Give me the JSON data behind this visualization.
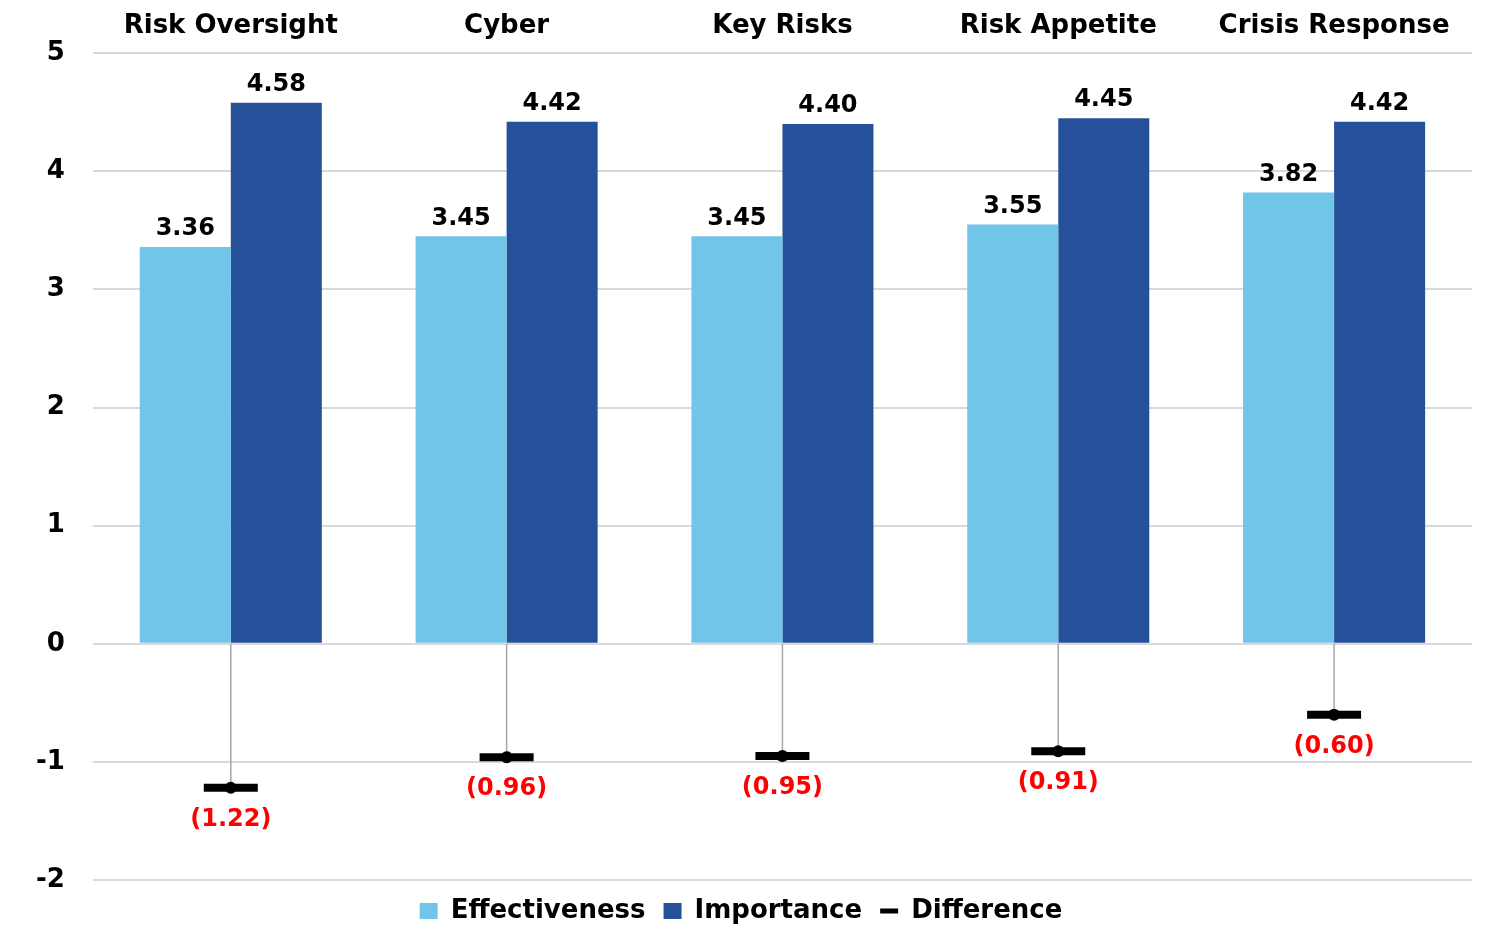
{
  "chart_data": {
    "type": "bar",
    "categories": [
      "Risk Oversight",
      "Cyber",
      "Key Risks",
      "Risk Appetite",
      "Crisis Response"
    ],
    "series": [
      {
        "name": "Effectiveness",
        "color": "#71c5e8",
        "values": [
          3.36,
          3.45,
          3.45,
          3.55,
          3.82
        ],
        "value_labels": [
          "3.36",
          "3.45",
          "3.45",
          "3.55",
          "3.82"
        ]
      },
      {
        "name": "Importance",
        "color": "#27509b",
        "values": [
          4.58,
          4.42,
          4.4,
          4.45,
          4.42
        ],
        "value_labels": [
          "4.58",
          "4.42",
          "4.40",
          "4.45",
          "4.42"
        ]
      },
      {
        "name": "Difference",
        "type": "lollipop",
        "color": "#000000",
        "values": [
          -1.22,
          -0.96,
          -0.95,
          -0.91,
          -0.6
        ],
        "value_labels": [
          "(1.22)",
          "(0.96)",
          "(0.95)",
          "(0.91)",
          "(0.60)"
        ]
      }
    ],
    "ylim": [
      -2,
      5
    ],
    "yticks": [
      -2,
      -1,
      0,
      1,
      2,
      3,
      4,
      5
    ],
    "grid": "y",
    "legend": "bottom"
  }
}
